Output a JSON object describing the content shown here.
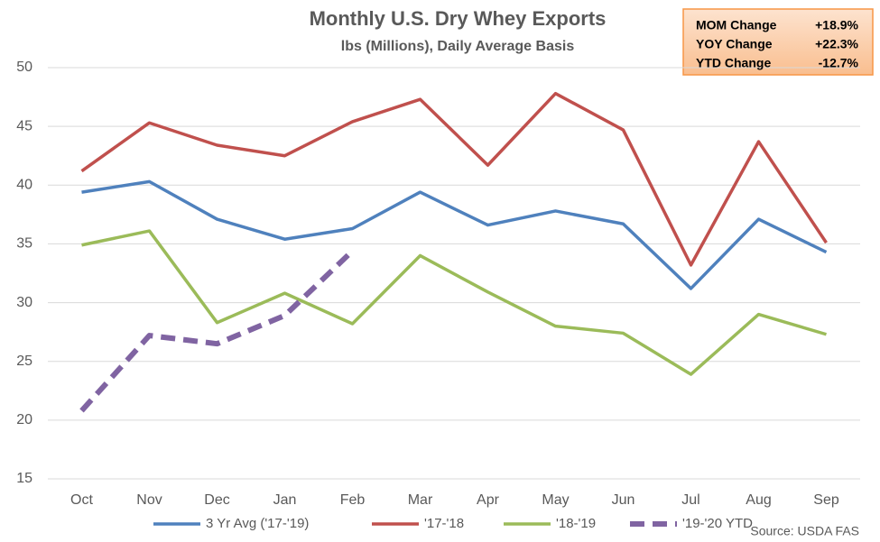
{
  "chart_data": {
    "type": "line",
    "title": "Monthly U.S. Dry Whey Exports",
    "subtitle": "lbs (Millions), Daily Average Basis",
    "categories": [
      "Oct",
      "Nov",
      "Dec",
      "Jan",
      "Feb",
      "Mar",
      "Apr",
      "May",
      "Jun",
      "Jul",
      "Aug",
      "Sep"
    ],
    "series": [
      {
        "name": "3 Yr Avg ('17-'19)",
        "color": "#4f81bd",
        "values": [
          39.4,
          40.3,
          37.1,
          35.4,
          36.3,
          39.4,
          36.6,
          37.8,
          36.7,
          31.2,
          37.1,
          34.3
        ]
      },
      {
        "name": "'17-'18",
        "color": "#c0504d",
        "values": [
          41.2,
          45.3,
          43.4,
          42.5,
          45.4,
          47.3,
          41.7,
          47.8,
          44.7,
          33.2,
          43.7,
          35.1
        ]
      },
      {
        "name": "'18-'19",
        "color": "#9bbb59",
        "values": [
          34.9,
          36.1,
          28.3,
          30.8,
          28.2,
          34.0,
          30.9,
          28.0,
          27.4,
          23.9,
          29.0,
          27.3
        ]
      },
      {
        "name": "'19-'20 YTD",
        "color": "#8064a2",
        "dashed": true,
        "values": [
          20.8,
          27.2,
          26.5,
          28.9,
          34.4,
          null,
          null,
          null,
          null,
          null,
          null,
          null
        ]
      }
    ],
    "ylim": [
      15,
      50
    ],
    "yticks": [
      15,
      20,
      25,
      30,
      35,
      40,
      45,
      50
    ],
    "grid": true,
    "legend": "bottom",
    "source": "Source: USDA FAS",
    "info_box": [
      [
        "MOM Change",
        "+18.9%"
      ],
      [
        "YOY Change",
        "+22.3%"
      ],
      [
        "YTD Change",
        "-12.7%"
      ]
    ]
  }
}
